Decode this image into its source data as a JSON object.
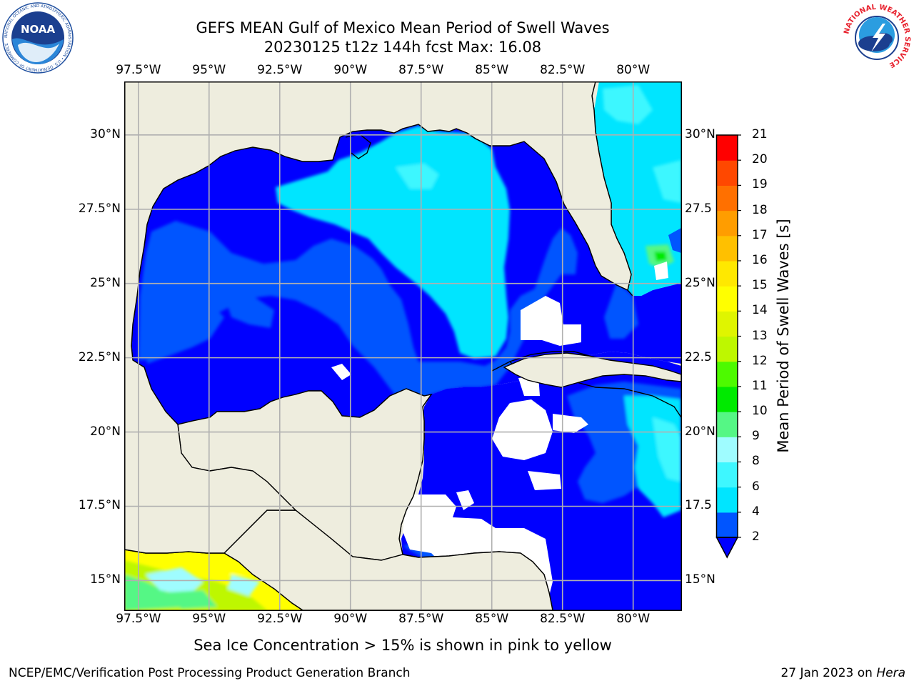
{
  "header": {
    "title_line1": "GEFS MEAN Gulf of Mexico Mean Period of Swell Waves",
    "title_line2": "20230125 t12z 144h fcst   Max: 16.08"
  },
  "logos": {
    "left_logo": "NOAA",
    "left_ring_text": "NATIONAL OCEANIC AND ATMOSPHERIC ADMINISTRATION • U.S. DEPARTMENT OF COMMERCE",
    "right_ring_text": "NATIONAL WEATHER SERVICE"
  },
  "map": {
    "lon_labels": [
      "97.5°W",
      "95°W",
      "92.5°W",
      "90°W",
      "87.5°W",
      "85°W",
      "82.5°W",
      "80°W"
    ],
    "lat_labels_left": [
      "30°N",
      "27.5°N",
      "25°N",
      "22.5°N",
      "20°N",
      "17.5°N",
      "15°N"
    ],
    "lat_labels_right": [
      "30°N",
      "27.5",
      "25°N",
      "22.5",
      "20°N",
      "17.5",
      "15°N"
    ],
    "extent": {
      "lon_min": -98.0,
      "lon_max": -78.3,
      "lat_min": 14.0,
      "lat_max": 31.8
    },
    "colors": {
      "land": "#eeedde",
      "grid": "#b0b0b0",
      "coast": "#000000"
    }
  },
  "colorbar": {
    "label": "Mean Period of Swell Waves [s]",
    "ticks": [
      "2",
      "4",
      "6",
      "8",
      "9",
      "10",
      "11",
      "12",
      "13",
      "14",
      "15",
      "16",
      "17",
      "18",
      "19",
      "20",
      "21"
    ],
    "colors": [
      "#0055ff",
      "#00e5ff",
      "#3ef7ff",
      "#9ffcff",
      "#55f785",
      "#00ea00",
      "#4dfa00",
      "#bef700",
      "#dff500",
      "#ffff00",
      "#ffe800",
      "#ffc000",
      "#ff9d00",
      "#ff7000",
      "#ff4800",
      "#ff0000"
    ],
    "extend_color": "#0000ff"
  },
  "chart_data": {
    "type": "heatmap",
    "title": "GEFS MEAN Gulf of Mexico Mean Period of Swell Waves",
    "subtitle": "20230125 t12z 144h fcst   Max: 16.08",
    "xlabel": "",
    "ylabel": "",
    "x_ticks": [
      "97.5°W",
      "95°W",
      "92.5°W",
      "90°W",
      "87.5°W",
      "85°W",
      "82.5°W",
      "80°W"
    ],
    "y_ticks": [
      "30°N",
      "27.5°N",
      "25°N",
      "22.5°N",
      "20°N",
      "17.5°N",
      "15°N"
    ],
    "colorbar_label": "Mean Period of Swell Waves [s]",
    "max": 16.08
  },
  "notes": {
    "sea_ice": "Sea Ice Concentration > 15% is shown in pink to yellow",
    "producer": "NCEP/EMC/Verification Post Processing Product Generation Branch",
    "date": "27 Jan 2023 on ",
    "machine": "Hera"
  }
}
